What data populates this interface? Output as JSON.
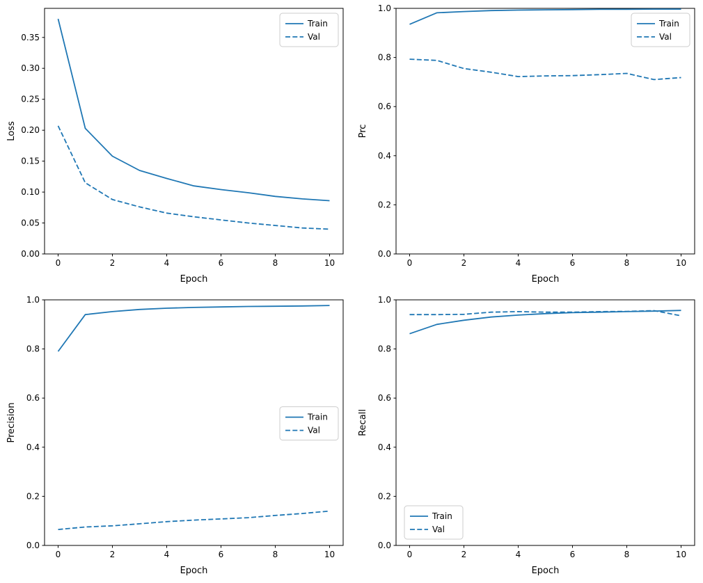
{
  "figure": {
    "background": "#ffffff",
    "line_color": "#1f77b4",
    "axis_color": "#000000",
    "legend_edge_color": "#cccccc"
  },
  "chart_data": [
    {
      "id": "loss",
      "type": "line",
      "title": "",
      "xlabel": "Epoch",
      "ylabel": "Loss",
      "x": [
        0,
        1,
        2,
        3,
        4,
        5,
        6,
        7,
        8,
        9,
        10
      ],
      "xlim": [
        -0.5,
        10.5
      ],
      "ylim": [
        0,
        0.397
      ],
      "xticks": [
        0,
        2,
        4,
        6,
        8,
        10
      ],
      "yticks": [
        0.0,
        0.05,
        0.1,
        0.15,
        0.2,
        0.25,
        0.3,
        0.35
      ],
      "ytick_decimals": 2,
      "grid": false,
      "legend": {
        "position": "top-right"
      },
      "series": [
        {
          "name": "Train",
          "dash": "solid",
          "values": [
            0.38,
            0.203,
            0.158,
            0.135,
            0.122,
            0.11,
            0.104,
            0.099,
            0.093,
            0.089,
            0.086
          ]
        },
        {
          "name": "Val",
          "dash": "dashed",
          "values": [
            0.207,
            0.115,
            0.088,
            0.076,
            0.066,
            0.06,
            0.055,
            0.05,
            0.046,
            0.042,
            0.04
          ]
        }
      ]
    },
    {
      "id": "prc",
      "type": "line",
      "title": "",
      "xlabel": "Epoch",
      "ylabel": "Prc",
      "x": [
        0,
        1,
        2,
        3,
        4,
        5,
        6,
        7,
        8,
        9,
        10
      ],
      "xlim": [
        -0.5,
        10.5
      ],
      "ylim": [
        0,
        1.0
      ],
      "xticks": [
        0,
        2,
        4,
        6,
        8,
        10
      ],
      "yticks": [
        0.0,
        0.2,
        0.4,
        0.6,
        0.8,
        1.0
      ],
      "ytick_decimals": 1,
      "grid": false,
      "legend": {
        "position": "top-right"
      },
      "series": [
        {
          "name": "Train",
          "dash": "solid",
          "values": [
            0.935,
            0.982,
            0.987,
            0.991,
            0.993,
            0.994,
            0.995,
            0.996,
            0.996,
            0.997,
            0.997
          ]
        },
        {
          "name": "Val",
          "dash": "dashed",
          "values": [
            0.793,
            0.788,
            0.755,
            0.74,
            0.722,
            0.725,
            0.726,
            0.73,
            0.735,
            0.71,
            0.718
          ]
        }
      ]
    },
    {
      "id": "precision",
      "type": "line",
      "title": "",
      "xlabel": "Epoch",
      "ylabel": "Precision",
      "x": [
        0,
        1,
        2,
        3,
        4,
        5,
        6,
        7,
        8,
        9,
        10
      ],
      "xlim": [
        -0.5,
        10.5
      ],
      "ylim": [
        0,
        1.0
      ],
      "xticks": [
        0,
        2,
        4,
        6,
        8,
        10
      ],
      "yticks": [
        0.0,
        0.2,
        0.4,
        0.6,
        0.8,
        1.0
      ],
      "ytick_decimals": 1,
      "grid": false,
      "legend": {
        "position": "center-right"
      },
      "series": [
        {
          "name": "Train",
          "dash": "solid",
          "values": [
            0.79,
            0.94,
            0.952,
            0.961,
            0.966,
            0.969,
            0.971,
            0.973,
            0.974,
            0.975,
            0.977
          ]
        },
        {
          "name": "Val",
          "dash": "dashed",
          "values": [
            0.065,
            0.075,
            0.08,
            0.088,
            0.097,
            0.103,
            0.108,
            0.113,
            0.122,
            0.13,
            0.14
          ]
        }
      ]
    },
    {
      "id": "recall",
      "type": "line",
      "title": "",
      "xlabel": "Epoch",
      "ylabel": "Recall",
      "x": [
        0,
        1,
        2,
        3,
        4,
        5,
        6,
        7,
        8,
        9,
        10
      ],
      "xlim": [
        -0.5,
        10.5
      ],
      "ylim": [
        0,
        1.0
      ],
      "xticks": [
        0,
        2,
        4,
        6,
        8,
        10
      ],
      "yticks": [
        0.0,
        0.2,
        0.4,
        0.6,
        0.8,
        1.0
      ],
      "ytick_decimals": 1,
      "grid": false,
      "legend": {
        "position": "bottom-left"
      },
      "series": [
        {
          "name": "Train",
          "dash": "solid",
          "values": [
            0.862,
            0.9,
            0.917,
            0.93,
            0.938,
            0.944,
            0.948,
            0.95,
            0.952,
            0.954,
            0.957
          ]
        },
        {
          "name": "Val",
          "dash": "dashed",
          "values": [
            0.94,
            0.94,
            0.941,
            0.95,
            0.952,
            0.95,
            0.95,
            0.952,
            0.953,
            0.956,
            0.935
          ]
        }
      ]
    }
  ]
}
